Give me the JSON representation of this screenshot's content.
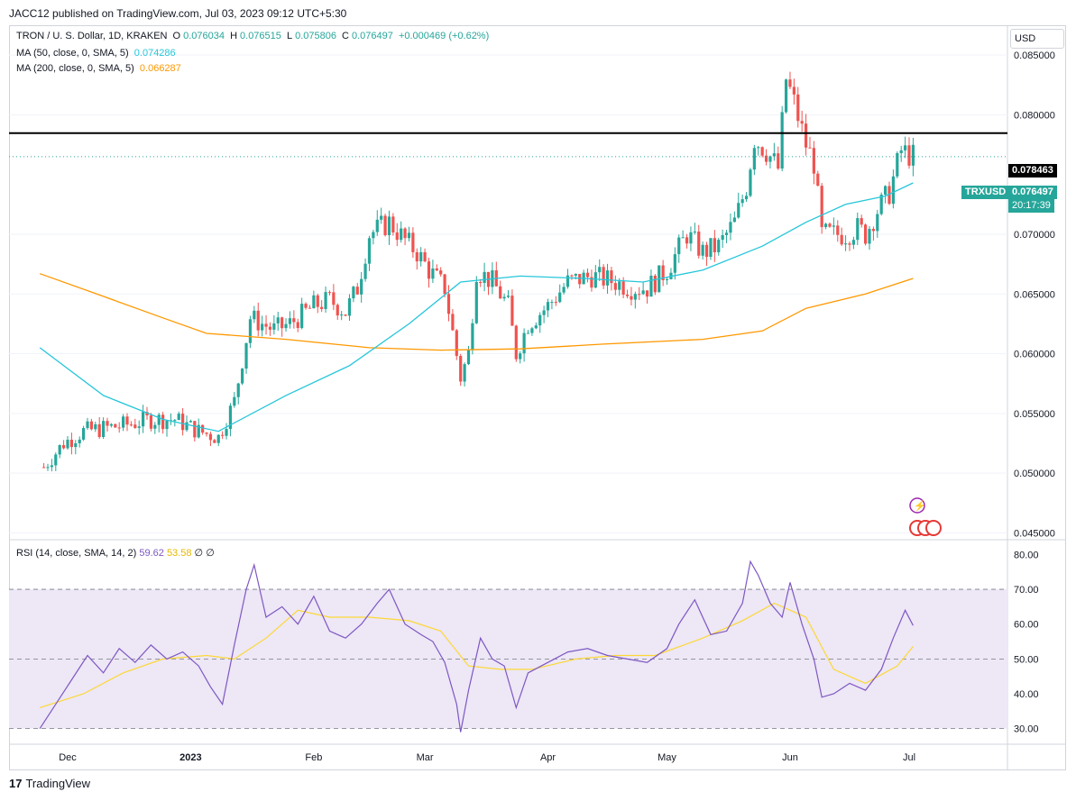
{
  "publish_line": "JACC12 published on TradingView.com, Jul 03, 2023 09:12 UTC+5:30",
  "footer_logo": "TradingView",
  "currency_button": "USD",
  "legend": {
    "symbol": "TRON / U. S. Dollar, 1D, KRAKEN",
    "o_label": "O",
    "o_value": "0.076034",
    "h_label": "H",
    "h_value": "0.076515",
    "l_label": "L",
    "l_value": "0.075806",
    "c_label": "C",
    "c_value": "0.076497",
    "change": "+0.000469 (+0.62%)",
    "ma50_label": "MA (50, close, 0, SMA, 5)",
    "ma50_value": "0.074286",
    "ma200_label": "MA (200, close, 0, SMA, 5)",
    "ma200_value": "0.066287",
    "rsi_label": "RSI (14, close, SMA, 14, 2)",
    "rsi_value": "59.62",
    "rsi_ma_value": "53.58",
    "rsi_extra1": "∅",
    "rsi_extra2": "∅"
  },
  "colors": {
    "up": "#26a69a",
    "down": "#ef5350",
    "ma50": "#26c6da",
    "ma200": "#ff9800",
    "rsi": "#7e57c2",
    "rsi_ma": "#fdd835",
    "rsi_band": "#ede7f6",
    "line": "#000000"
  },
  "price_tags": {
    "horizontal_line": "0.078463",
    "ticker": "TRXUSD",
    "last_price": "0.076497",
    "countdown": "20:17:39"
  },
  "chart_data": [
    {
      "type": "candlestick",
      "symbol": "TRXUSD",
      "ylim": [
        0.0445,
        0.0875
      ],
      "y_ticks": [
        "0.085000",
        "0.080000",
        "0.070000",
        "0.065000",
        "0.060000",
        "0.055000",
        "0.050000",
        "0.045000"
      ],
      "x_ticks": [
        "Dec",
        "2023",
        "Feb",
        "Mar",
        "Apr",
        "May",
        "Jun",
        "Jul"
      ],
      "horizontal_line": 0.078463,
      "last_close": 0.076497,
      "close_path": [
        [
          "2022-11-25",
          0.0505
        ],
        [
          "2022-11-30",
          0.0525
        ],
        [
          "2022-12-05",
          0.0535
        ],
        [
          "2022-12-15",
          0.054
        ],
        [
          "2022-12-22",
          0.0545
        ],
        [
          "2022-12-28",
          0.0545
        ],
        [
          "2023-01-03",
          0.0535
        ],
        [
          "2023-01-08",
          0.053
        ],
        [
          "2023-01-12",
          0.056
        ],
        [
          "2023-01-16",
          0.063
        ],
        [
          "2023-01-22",
          0.062
        ],
        [
          "2023-01-26",
          0.0625
        ],
        [
          "2023-02-01",
          0.064
        ],
        [
          "2023-02-05",
          0.0645
        ],
        [
          "2023-02-09",
          0.0635
        ],
        [
          "2023-02-12",
          0.0655
        ],
        [
          "2023-02-15",
          0.07
        ],
        [
          "2023-02-20",
          0.071
        ],
        [
          "2023-02-24",
          0.0695
        ],
        [
          "2023-02-27",
          0.0685
        ],
        [
          "2023-03-02",
          0.067
        ],
        [
          "2023-03-06",
          0.0655
        ],
        [
          "2023-03-10",
          0.058
        ],
        [
          "2023-03-12",
          0.06
        ],
        [
          "2023-03-14",
          0.067
        ],
        [
          "2023-03-18",
          0.066
        ],
        [
          "2023-03-22",
          0.064
        ],
        [
          "2023-03-24",
          0.06
        ],
        [
          "2023-03-27",
          0.0625
        ],
        [
          "2023-04-01",
          0.064
        ],
        [
          "2023-04-06",
          0.066
        ],
        [
          "2023-04-12",
          0.0665
        ],
        [
          "2023-04-18",
          0.066
        ],
        [
          "2023-04-22",
          0.0655
        ],
        [
          "2023-04-26",
          0.0655
        ],
        [
          "2023-05-01",
          0.067
        ],
        [
          "2023-05-06",
          0.07
        ],
        [
          "2023-05-10",
          0.0685
        ],
        [
          "2023-05-14",
          0.069
        ],
        [
          "2023-05-18",
          0.071
        ],
        [
          "2023-05-21",
          0.074
        ],
        [
          "2023-05-23",
          0.078
        ],
        [
          "2023-05-26",
          0.077
        ],
        [
          "2023-05-29",
          0.0755
        ],
        [
          "2023-05-31",
          0.083
        ],
        [
          "2023-06-02",
          0.081
        ],
        [
          "2023-06-05",
          0.0775
        ],
        [
          "2023-06-07",
          0.076
        ],
        [
          "2023-06-09",
          0.07
        ],
        [
          "2023-06-12",
          0.07
        ],
        [
          "2023-06-15",
          0.07
        ],
        [
          "2023-06-18",
          0.0705
        ],
        [
          "2023-06-20",
          0.07
        ],
        [
          "2023-06-23",
          0.072
        ],
        [
          "2023-06-26",
          0.0735
        ],
        [
          "2023-06-29",
          0.077
        ],
        [
          "2023-07-02",
          0.0765
        ]
      ],
      "ma50_path": [
        [
          "2022-11-24",
          0.0605
        ],
        [
          "2022-12-10",
          0.0565
        ],
        [
          "2022-12-25",
          0.0545
        ],
        [
          "2023-01-08",
          0.0535
        ],
        [
          "2023-01-25",
          0.0565
        ],
        [
          "2023-02-10",
          0.059
        ],
        [
          "2023-02-25",
          0.0625
        ],
        [
          "2023-03-10",
          0.066
        ],
        [
          "2023-03-25",
          0.0665
        ],
        [
          "2023-04-10",
          0.0663
        ],
        [
          "2023-04-25",
          0.066
        ],
        [
          "2023-05-10",
          0.067
        ],
        [
          "2023-05-25",
          0.069
        ],
        [
          "2023-06-05",
          0.071
        ],
        [
          "2023-06-15",
          0.0725
        ],
        [
          "2023-06-25",
          0.0732
        ],
        [
          "2023-07-02",
          0.0743
        ]
      ],
      "ma200_path": [
        [
          "2022-11-24",
          0.0667
        ],
        [
          "2022-12-10",
          0.0648
        ],
        [
          "2022-12-25",
          0.063
        ],
        [
          "2023-01-05",
          0.0617
        ],
        [
          "2023-01-25",
          0.0612
        ],
        [
          "2023-02-15",
          0.0605
        ],
        [
          "2023-03-05",
          0.0603
        ],
        [
          "2023-03-25",
          0.0604
        ],
        [
          "2023-04-15",
          0.0608
        ],
        [
          "2023-05-10",
          0.0612
        ],
        [
          "2023-05-25",
          0.0619
        ],
        [
          "2023-06-05",
          0.0638
        ],
        [
          "2023-06-20",
          0.065
        ],
        [
          "2023-07-02",
          0.0663
        ]
      ]
    },
    {
      "type": "line",
      "name": "RSI",
      "ylim": [
        25.5,
        84
      ],
      "y_ticks": [
        "80.00",
        "70.00",
        "60.00",
        "50.00",
        "40.00",
        "30.00"
      ],
      "band": [
        30,
        70
      ],
      "midline": 50,
      "rsi_path": [
        [
          "2022-11-24",
          30
        ],
        [
          "2022-11-28",
          37
        ],
        [
          "2022-12-02",
          44
        ],
        [
          "2022-12-06",
          51
        ],
        [
          "2022-12-10",
          46
        ],
        [
          "2022-12-14",
          53
        ],
        [
          "2022-12-18",
          49
        ],
        [
          "2022-12-22",
          54
        ],
        [
          "2022-12-26",
          50
        ],
        [
          "2022-12-30",
          52
        ],
        [
          "2023-01-03",
          48
        ],
        [
          "2023-01-06",
          42
        ],
        [
          "2023-01-09",
          37
        ],
        [
          "2023-01-12",
          54
        ],
        [
          "2023-01-15",
          70
        ],
        [
          "2023-01-17",
          77
        ],
        [
          "2023-01-20",
          62
        ],
        [
          "2023-01-24",
          65
        ],
        [
          "2023-01-28",
          60
        ],
        [
          "2023-02-01",
          68
        ],
        [
          "2023-02-05",
          58
        ],
        [
          "2023-02-09",
          56
        ],
        [
          "2023-02-13",
          60
        ],
        [
          "2023-02-17",
          66
        ],
        [
          "2023-02-20",
          70
        ],
        [
          "2023-02-24",
          60
        ],
        [
          "2023-02-28",
          57
        ],
        [
          "2023-03-03",
          55
        ],
        [
          "2023-03-06",
          49
        ],
        [
          "2023-03-09",
          37
        ],
        [
          "2023-03-10",
          29
        ],
        [
          "2023-03-12",
          41
        ],
        [
          "2023-03-15",
          56
        ],
        [
          "2023-03-18",
          50
        ],
        [
          "2023-03-21",
          48
        ],
        [
          "2023-03-24",
          36
        ],
        [
          "2023-03-27",
          46
        ],
        [
          "2023-04-01",
          49
        ],
        [
          "2023-04-06",
          52
        ],
        [
          "2023-04-11",
          53
        ],
        [
          "2023-04-16",
          51
        ],
        [
          "2023-04-21",
          50
        ],
        [
          "2023-04-26",
          49
        ],
        [
          "2023-05-01",
          53
        ],
        [
          "2023-05-04",
          60
        ],
        [
          "2023-05-08",
          67
        ],
        [
          "2023-05-12",
          57
        ],
        [
          "2023-05-16",
          58
        ],
        [
          "2023-05-20",
          66
        ],
        [
          "2023-05-22",
          78
        ],
        [
          "2023-05-24",
          74
        ],
        [
          "2023-05-27",
          66
        ],
        [
          "2023-05-30",
          62
        ],
        [
          "2023-06-01",
          72
        ],
        [
          "2023-06-04",
          60
        ],
        [
          "2023-06-07",
          50
        ],
        [
          "2023-06-09",
          39
        ],
        [
          "2023-06-12",
          40
        ],
        [
          "2023-06-16",
          43
        ],
        [
          "2023-06-20",
          41
        ],
        [
          "2023-06-24",
          47
        ],
        [
          "2023-06-27",
          56
        ],
        [
          "2023-06-30",
          64
        ],
        [
          "2023-07-02",
          59.62
        ]
      ],
      "rsi_ma_path": [
        [
          "2022-11-24",
          36
        ],
        [
          "2022-12-05",
          40
        ],
        [
          "2022-12-15",
          46
        ],
        [
          "2022-12-25",
          50
        ],
        [
          "2023-01-05",
          51
        ],
        [
          "2023-01-12",
          50
        ],
        [
          "2023-01-20",
          56
        ],
        [
          "2023-01-28",
          64
        ],
        [
          "2023-02-05",
          62
        ],
        [
          "2023-02-15",
          62
        ],
        [
          "2023-02-25",
          61
        ],
        [
          "2023-03-05",
          58
        ],
        [
          "2023-03-12",
          48
        ],
        [
          "2023-03-20",
          47
        ],
        [
          "2023-03-28",
          47
        ],
        [
          "2023-04-08",
          50
        ],
        [
          "2023-04-18",
          51
        ],
        [
          "2023-04-28",
          51
        ],
        [
          "2023-05-10",
          56
        ],
        [
          "2023-05-20",
          61
        ],
        [
          "2023-05-28",
          66
        ],
        [
          "2023-06-05",
          62
        ],
        [
          "2023-06-12",
          47
        ],
        [
          "2023-06-20",
          43
        ],
        [
          "2023-06-28",
          48
        ],
        [
          "2023-07-02",
          53.58
        ]
      ]
    }
  ]
}
